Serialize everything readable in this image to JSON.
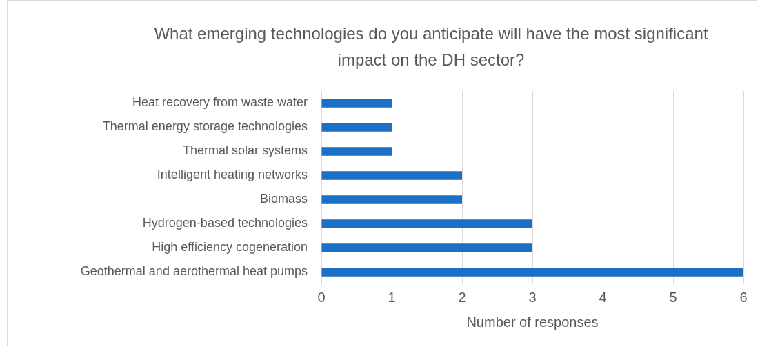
{
  "chart_data": {
    "type": "bar",
    "orientation": "horizontal",
    "title": "What emerging technologies do you anticipate will have the most significant impact on the DH sector?",
    "xlabel": "Number of responses",
    "categories": [
      "Heat recovery from waste water",
      "Thermal energy storage technologies",
      "Thermal solar systems",
      "Intelligent heating networks",
      "Biomass",
      "Hydrogen-based technologies",
      "High efficiency cogeneration",
      "Geothermal and aerothermal heat pumps"
    ],
    "values": [
      1,
      1,
      1,
      2,
      2,
      3,
      3,
      6
    ],
    "color": "#1b6fc4",
    "xlim": [
      0,
      6
    ],
    "xticks": [
      0,
      1,
      2,
      3,
      4,
      5,
      6
    ],
    "grid": "x",
    "legend": false
  }
}
